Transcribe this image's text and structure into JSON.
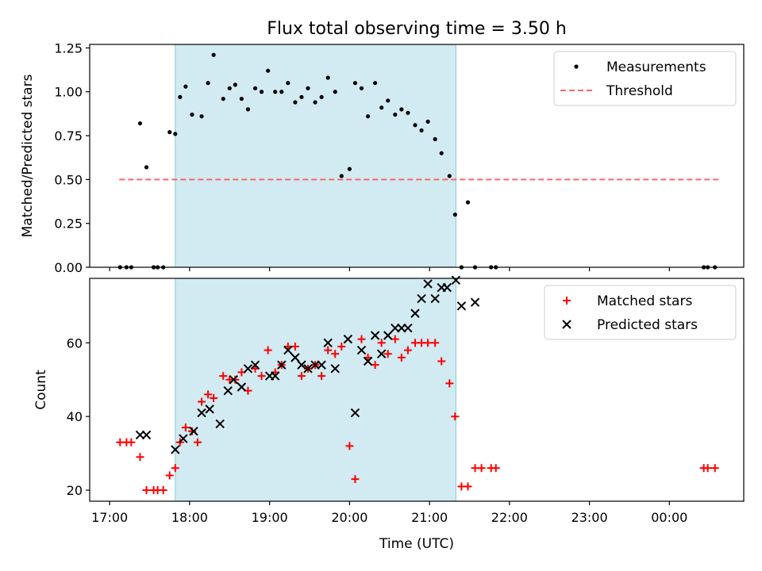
{
  "title": "Flux total observing time = 3.50 h",
  "xlabel": "Time (UTC)",
  "x_ticks": [
    "17:00",
    "18:00",
    "19:00",
    "20:00",
    "21:00",
    "22:00",
    "23:00",
    "00:00"
  ],
  "colors": {
    "shade": "#add8e6",
    "threshold": "#ff6666",
    "matched": "#ff0000",
    "predicted": "#000000",
    "measurements": "#000000"
  },
  "chart_data": [
    {
      "type": "scatter",
      "panel": "ratio",
      "ylabel": "Matched/Predicted stars",
      "xlim_hours": [
        16.75,
        24.93
      ],
      "ylim": [
        0.0,
        1.27
      ],
      "y_ticks": [
        "0.00",
        "0.25",
        "0.50",
        "0.75",
        "1.00",
        "1.25"
      ],
      "shaded_interval_hours": [
        17.82,
        21.33
      ],
      "threshold": {
        "name": "Threshold",
        "y": 0.5,
        "x_hours": [
          17.12,
          24.62
        ]
      },
      "legend": {
        "position": "top-right",
        "entries": [
          "Measurements",
          "Threshold"
        ]
      },
      "series": [
        {
          "name": "Measurements",
          "x_hours": [
            17.13,
            17.21,
            17.27,
            17.38,
            17.46,
            17.55,
            17.6,
            17.67,
            17.75,
            17.82,
            17.88,
            17.95,
            18.03,
            18.15,
            18.23,
            18.3,
            18.42,
            18.5,
            18.57,
            18.65,
            18.73,
            18.82,
            18.9,
            18.98,
            19.07,
            19.15,
            19.23,
            19.32,
            19.4,
            19.48,
            19.57,
            19.65,
            19.73,
            19.82,
            19.9,
            20.0,
            20.07,
            20.15,
            20.23,
            20.32,
            20.4,
            20.48,
            20.57,
            20.65,
            20.73,
            20.82,
            20.9,
            20.98,
            21.07,
            21.15,
            21.25,
            21.32,
            21.4,
            21.48,
            21.57,
            21.77,
            21.83,
            24.43,
            24.48,
            24.57
          ],
          "y": [
            0.0,
            0.0,
            0.0,
            0.82,
            0.57,
            0.0,
            0.0,
            0.0,
            0.77,
            0.76,
            0.97,
            1.03,
            0.87,
            0.86,
            1.05,
            1.21,
            0.96,
            1.02,
            1.04,
            0.96,
            0.9,
            1.02,
            1.0,
            1.12,
            1.0,
            1.0,
            1.05,
            0.94,
            0.97,
            1.02,
            0.94,
            0.97,
            1.08,
            1.0,
            0.52,
            0.56,
            1.05,
            1.02,
            0.86,
            1.05,
            0.91,
            0.95,
            0.87,
            0.9,
            0.88,
            0.81,
            0.78,
            0.83,
            0.73,
            0.65,
            0.52,
            0.3,
            0.0,
            0.37,
            0.0,
            0.0,
            0.0,
            0.0,
            0.0,
            0.0
          ]
        }
      ]
    },
    {
      "type": "scatter",
      "panel": "count",
      "ylabel": "Count",
      "xlim_hours": [
        16.75,
        24.93
      ],
      "ylim": [
        17,
        77.5
      ],
      "y_ticks": [
        "20",
        "40",
        "60"
      ],
      "shaded_interval_hours": [
        17.82,
        21.33
      ],
      "legend": {
        "position": "top-right",
        "entries": [
          "Matched stars",
          "Predicted stars"
        ]
      },
      "series": [
        {
          "name": "Matched stars",
          "marker": "+",
          "x_hours": [
            17.13,
            17.21,
            17.27,
            17.38,
            17.46,
            17.55,
            17.6,
            17.67,
            17.75,
            17.82,
            17.88,
            17.95,
            18.03,
            18.1,
            18.15,
            18.23,
            18.3,
            18.42,
            18.5,
            18.57,
            18.65,
            18.73,
            18.82,
            18.9,
            18.98,
            19.07,
            19.15,
            19.23,
            19.32,
            19.4,
            19.48,
            19.57,
            19.65,
            19.73,
            19.82,
            19.9,
            20.0,
            20.07,
            20.15,
            20.23,
            20.32,
            20.4,
            20.48,
            20.57,
            20.65,
            20.73,
            20.82,
            20.9,
            20.98,
            21.07,
            21.15,
            21.25,
            21.32,
            21.4,
            21.48,
            21.57,
            21.65,
            21.77,
            21.83,
            24.43,
            24.48,
            24.57
          ],
          "y": [
            33,
            33,
            33,
            29,
            20,
            20,
            20,
            20,
            24,
            26,
            33,
            37,
            36,
            33,
            44,
            46,
            45,
            51,
            50,
            50,
            52,
            47,
            53,
            51,
            58,
            52,
            54,
            59,
            59,
            51,
            53,
            54,
            51,
            58,
            57,
            59,
            32,
            23,
            61,
            56,
            54,
            60,
            57,
            61,
            56,
            58,
            60,
            60,
            60,
            60,
            55,
            49,
            40,
            21,
            21,
            26,
            26,
            26,
            26,
            26,
            26,
            26
          ]
        },
        {
          "name": "Predicted stars",
          "marker": "x",
          "x_hours": [
            17.38,
            17.46,
            17.82,
            17.92,
            18.05,
            18.15,
            18.25,
            18.38,
            18.48,
            18.55,
            18.65,
            18.73,
            18.82,
            19.0,
            19.07,
            19.15,
            19.23,
            19.32,
            19.4,
            19.48,
            19.57,
            19.65,
            19.73,
            19.82,
            19.98,
            20.07,
            20.15,
            20.23,
            20.32,
            20.4,
            20.48,
            20.57,
            20.65,
            20.73,
            20.82,
            20.9,
            20.98,
            21.07,
            21.15,
            21.22,
            21.33,
            21.4,
            21.57
          ],
          "y": [
            35,
            35,
            31,
            34,
            36,
            41,
            42,
            38,
            47,
            50,
            48,
            53,
            54,
            51,
            51,
            54,
            58,
            56,
            54,
            53,
            54,
            54,
            60,
            53,
            61,
            41,
            58,
            55,
            62,
            57,
            62,
            64,
            64,
            64,
            68,
            72,
            76,
            72,
            75,
            75,
            77,
            70,
            71
          ]
        }
      ]
    }
  ]
}
